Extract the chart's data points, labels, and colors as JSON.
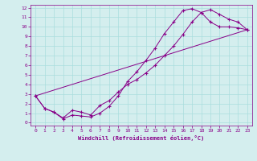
{
  "xlabel": "Windchill (Refroidissement éolien,°C)",
  "bg_color": "#d4eeee",
  "grid_color": "#aadddd",
  "line_color": "#880088",
  "xlim": [
    -0.5,
    23.5
  ],
  "ylim": [
    -0.3,
    12.3
  ],
  "xticks": [
    0,
    1,
    2,
    3,
    4,
    5,
    6,
    7,
    8,
    9,
    10,
    11,
    12,
    13,
    14,
    15,
    16,
    17,
    18,
    19,
    20,
    21,
    22,
    23
  ],
  "yticks": [
    0,
    1,
    2,
    3,
    4,
    5,
    6,
    7,
    8,
    9,
    10,
    11,
    12
  ],
  "line1_x": [
    0,
    1,
    2,
    3,
    4,
    5,
    6,
    7,
    8,
    9,
    10,
    11,
    12,
    13,
    14,
    15,
    16,
    17,
    18,
    19,
    20,
    21,
    22,
    23
  ],
  "line1_y": [
    2.8,
    1.5,
    1.1,
    0.4,
    0.8,
    0.7,
    0.6,
    1.0,
    1.7,
    2.8,
    4.3,
    5.3,
    6.5,
    7.8,
    9.3,
    10.5,
    11.7,
    11.9,
    11.5,
    10.5,
    10.0,
    10.0,
    9.9,
    9.7
  ],
  "line2_x": [
    0,
    1,
    2,
    3,
    4,
    5,
    6,
    7,
    8,
    9,
    10,
    11,
    12,
    13,
    14,
    15,
    16,
    17,
    18,
    19,
    20,
    21,
    22,
    23
  ],
  "line2_y": [
    2.8,
    1.5,
    1.1,
    0.5,
    1.3,
    1.1,
    0.8,
    1.8,
    2.3,
    3.2,
    4.0,
    4.5,
    5.2,
    6.0,
    7.0,
    8.0,
    9.2,
    10.5,
    11.5,
    11.8,
    11.3,
    10.8,
    10.5,
    9.7
  ],
  "line3_x": [
    0,
    23
  ],
  "line3_y": [
    2.8,
    9.7
  ]
}
